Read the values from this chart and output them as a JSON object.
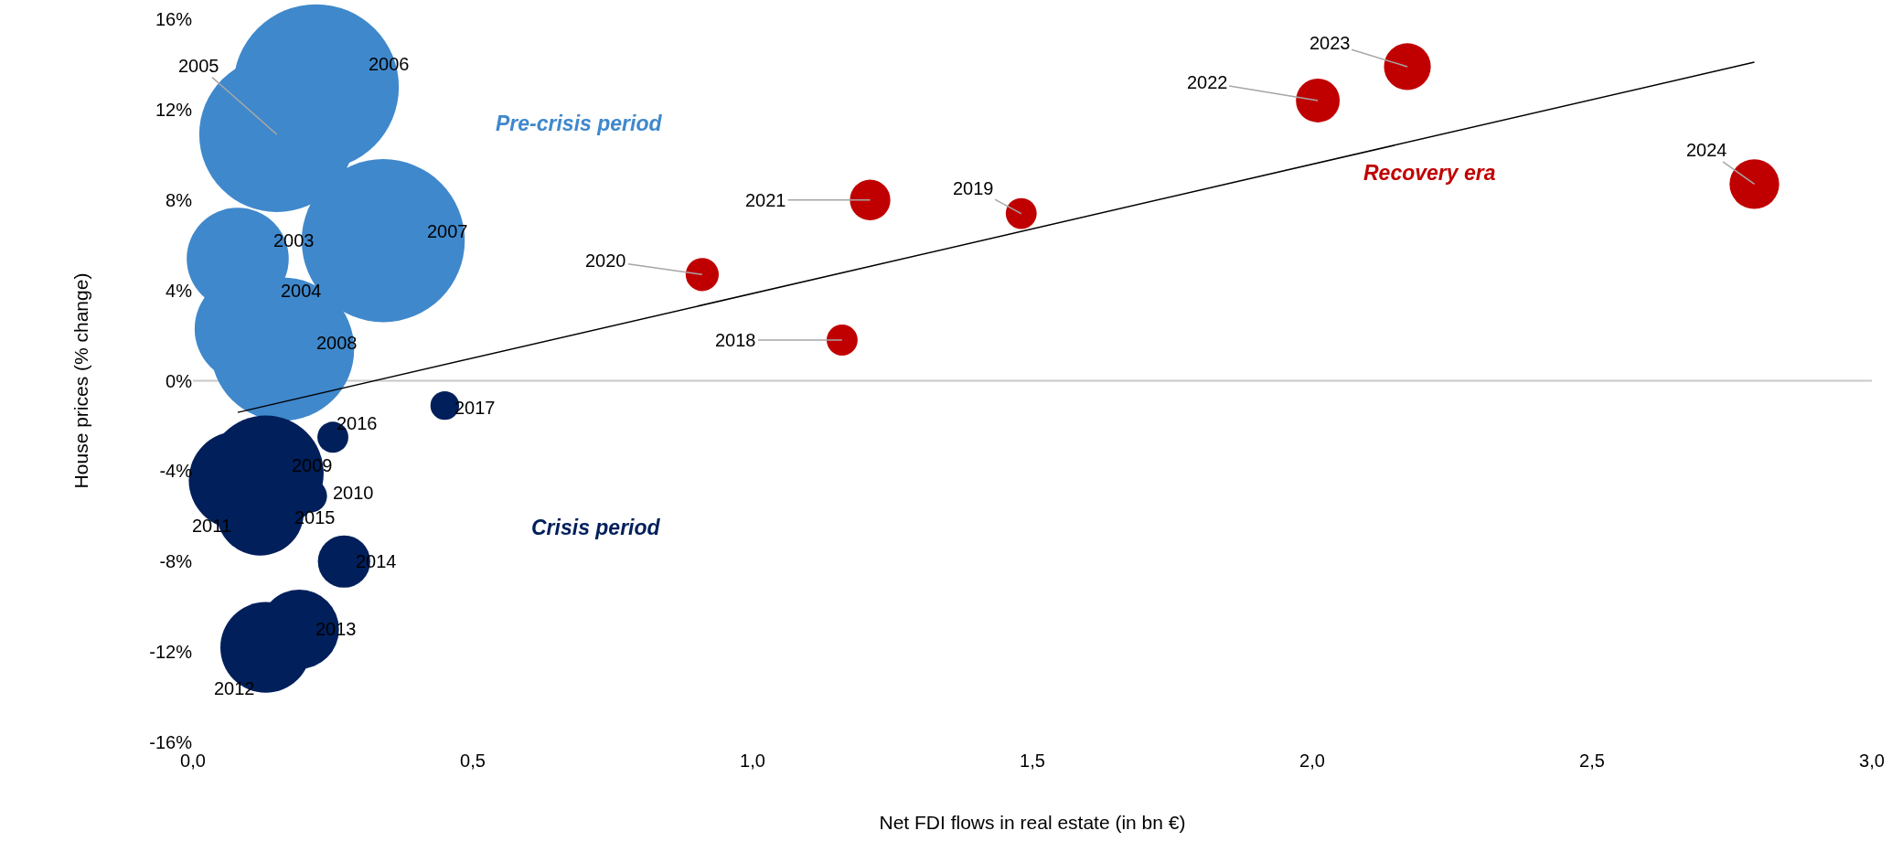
{
  "chart_data": {
    "type": "bubble",
    "xlabel": "Net FDI flows in real estate (in bn €)",
    "ylabel": "House prices (% change)",
    "xlim": [
      0,
      3
    ],
    "xticks": [
      {
        "value": 0,
        "label": "0,0"
      },
      {
        "value": 0.5,
        "label": "0,5"
      },
      {
        "value": 1,
        "label": "1,0"
      },
      {
        "value": 1.5,
        "label": "1,5"
      },
      {
        "value": 2,
        "label": "2,0"
      },
      {
        "value": 2.5,
        "label": "2,5"
      },
      {
        "value": 3,
        "label": "3,0"
      }
    ],
    "ylim": [
      -16,
      16
    ],
    "yticks": [
      {
        "value": -16,
        "label": "-16%"
      },
      {
        "value": -12,
        "label": "-12%"
      },
      {
        "value": -8,
        "label": "-8%"
      },
      {
        "value": -4,
        "label": "-4%"
      },
      {
        "value": 0,
        "label": "0%"
      },
      {
        "value": 4,
        "label": "4%"
      },
      {
        "value": 8,
        "label": "8%"
      },
      {
        "value": 12,
        "label": "12%"
      },
      {
        "value": 16,
        "label": "16%"
      }
    ],
    "grid": false,
    "legend": false,
    "ref_lines": [
      {
        "axis": "y",
        "value": 0,
        "color": "#c8c8c8"
      }
    ],
    "annotations": [
      {
        "text": "2003",
        "x": 0.08,
        "y": 5.4
      },
      {
        "text": "2004",
        "x": 0.1,
        "y": 2.3
      },
      {
        "text": "2005",
        "x": 0.15,
        "y": 10.9
      },
      {
        "text": "2006",
        "x": 0.22,
        "y": 13.0
      },
      {
        "text": "2007",
        "x": 0.34,
        "y": 6.2
      },
      {
        "text": "2008",
        "x": 0.16,
        "y": 1.4
      },
      {
        "text": "2009",
        "x": 0.13,
        "y": -4.1
      },
      {
        "text": "2010",
        "x": 0.21,
        "y": -5.1
      },
      {
        "text": "2011",
        "x": 0.08,
        "y": -4.4
      },
      {
        "text": "2012",
        "x": 0.13,
        "y": -11.8
      },
      {
        "text": "2013",
        "x": 0.19,
        "y": -11.0
      },
      {
        "text": "2014",
        "x": 0.27,
        "y": -8.0
      },
      {
        "text": "2015",
        "x": 0.12,
        "y": -5.8
      },
      {
        "text": "2016",
        "x": 0.25,
        "y": -2.5
      },
      {
        "text": "2017",
        "x": 0.45,
        "y": -1.1
      },
      {
        "text": "2018",
        "x": 1.16,
        "y": 1.8
      },
      {
        "text": "2019",
        "x": 1.48,
        "y": 7.4
      },
      {
        "text": "2020",
        "x": 0.91,
        "y": 4.7
      },
      {
        "text": "2021",
        "x": 1.21,
        "y": 8.0
      },
      {
        "text": "2022",
        "x": 2.01,
        "y": 12.4
      },
      {
        "text": "2023",
        "x": 2.17,
        "y": 13.9
      },
      {
        "text": "2024",
        "x": 2.79,
        "y": 8.7
      }
    ],
    "series": [
      {
        "name": "Pre-crisis period",
        "color": "#3f88cc",
        "x": [
          0.08,
          0.1,
          0.15,
          0.22,
          0.34,
          0.16
        ],
        "values": [
          5.4,
          2.3,
          10.9,
          13.0,
          6.2,
          1.4
        ],
        "sizes": [
          0.38,
          0.43,
          0.88,
          1,
          0.97,
          0.75
        ]
      },
      {
        "name": "Crisis period",
        "color": "#001f5b",
        "x": [
          0.13,
          0.21,
          0.08,
          0.13,
          0.19,
          0.27,
          0.12,
          0.25,
          0.45
        ],
        "values": [
          -4.1,
          -5.1,
          -4.4,
          -11.8,
          -11.0,
          -8.0,
          -5.8,
          -2.5,
          -1.1
        ],
        "sizes": [
          0.49,
          0.04,
          0.35,
          0.3,
          0.23,
          0.1,
          0.28,
          0.035,
          0.03
        ]
      },
      {
        "name": "Recovery era",
        "color": "#c00000",
        "x": [
          1.16,
          1.48,
          0.91,
          1.21,
          2.01,
          2.17,
          2.79
        ],
        "values": [
          1.8,
          7.4,
          4.7,
          8.0,
          12.4,
          13.9,
          8.7
        ],
        "sizes": [
          0.035,
          0.035,
          0.04,
          0.06,
          0.07,
          0.08,
          0.09
        ]
      },
      {
        "type": "line",
        "color": "#000000",
        "x": [
          0.08,
          2.79
        ],
        "values": [
          -1.4,
          14.1
        ]
      }
    ]
  }
}
